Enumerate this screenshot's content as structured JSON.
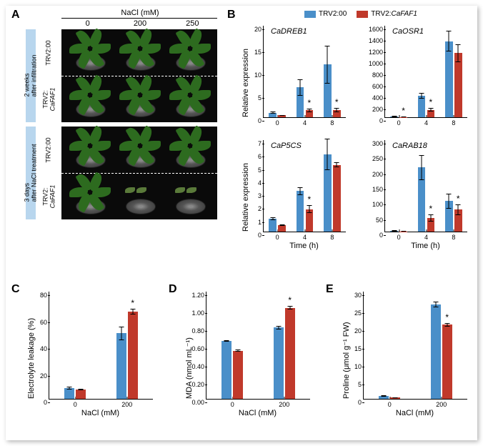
{
  "colors": {
    "trv00": "#4a8fc9",
    "trvfaf": "#c0392b",
    "axis": "#000000",
    "bg": "#ffffff",
    "side_label_bg": "#b8d6ee",
    "photo_bg": "#0a0a0a",
    "leaf": "#2d6b1f"
  },
  "legend": {
    "items": [
      {
        "label": "TRV2:00",
        "colorKey": "trv00"
      },
      {
        "label": "TRV2:CaFAF1",
        "colorKey": "trvfaf",
        "italic_part": "CaFAF1"
      }
    ]
  },
  "panelA": {
    "label": "A",
    "nacl_header": "NaCl (mM)",
    "nacl_levels": [
      "0",
      "200",
      "250"
    ],
    "blocks": [
      {
        "side": "2 weeks\nafter infiltration",
        "rows": [
          "TRV2:00",
          "TRV2:\nCaFAF1"
        ],
        "leafy_bottom": true
      },
      {
        "side": "3 days\nafter NaCl treatment",
        "rows": [
          "TRV2:00",
          "TRV2:\nCaFAF1"
        ],
        "leafy_bottom": false
      }
    ]
  },
  "panelB": {
    "label": "B",
    "ylabel": "Relative expression",
    "xlabel": "Time (h)",
    "categories": [
      "0",
      "4",
      "8"
    ],
    "charts": [
      {
        "title": "CaDREB1",
        "ymax": 20,
        "ystep": 5,
        "series": {
          "trv00": {
            "values": [
              1.0,
              6.5,
              11.5
            ],
            "err": [
              0.2,
              1.8,
              4.2
            ]
          },
          "trvfaf": {
            "values": [
              0.4,
              1.5,
              1.6
            ],
            "err": [
              0.1,
              0.4,
              0.5
            ]
          }
        },
        "stars": [
          null,
          "trvfaf",
          "trvfaf"
        ]
      },
      {
        "title": "CaOSR1",
        "ymax": 1600,
        "ystep": 200,
        "series": {
          "trv00": {
            "values": [
              15,
              370,
              1330
            ],
            "err": [
              3,
              50,
              180
            ]
          },
          "trvfaf": {
            "values": [
              5,
              130,
              1120
            ],
            "err": [
              2,
              30,
              160
            ]
          }
        },
        "stars": [
          "trvfaf",
          "trvfaf",
          null
        ]
      },
      {
        "title": "CaP5CS",
        "ymax": 7,
        "ystep": 1,
        "series": {
          "trv00": {
            "values": [
              1.0,
              3.1,
              5.9
            ],
            "err": [
              0.1,
              0.3,
              1.2
            ]
          },
          "trvfaf": {
            "values": [
              0.5,
              1.7,
              5.1
            ],
            "err": [
              0.05,
              0.3,
              0.2
            ]
          }
        },
        "stars": [
          null,
          "trvfaf",
          null
        ]
      },
      {
        "title": "CaRAB18",
        "ymax": 300,
        "ystep": 50,
        "series": {
          "trv00": {
            "values": [
              2,
              210,
              100
            ],
            "err": [
              0.5,
              42,
              25
            ]
          },
          "trvfaf": {
            "values": [
              1,
              45,
              72
            ],
            "err": [
              0.3,
              12,
              18
            ]
          }
        },
        "stars": [
          null,
          "trvfaf",
          "trvfaf"
        ]
      }
    ]
  },
  "panelsCDE": {
    "xlabel": "NaCl (mM)",
    "categories": [
      "0",
      "200"
    ],
    "charts": [
      {
        "label": "C",
        "ylabel": "Electrolyte leakage (%)",
        "ymax": 80,
        "ystep": 20,
        "series": {
          "trv00": {
            "values": [
              8,
              49
            ],
            "err": [
              1,
              5
            ]
          },
          "trvfaf": {
            "values": [
              7,
              65
            ],
            "err": [
              0.5,
              2
            ]
          }
        },
        "stars": [
          null,
          "trvfaf"
        ]
      },
      {
        "label": "D",
        "ylabel": "MDA (nmol mL⁻¹)",
        "ymax": 1.2,
        "ystep_vals": [
          0.0,
          0.2,
          0.4,
          0.6,
          0.8,
          1.0,
          1.2
        ],
        "series": {
          "trv00": {
            "values": [
              0.65,
              0.8
            ],
            "err": [
              0.01,
              0.02
            ]
          },
          "trvfaf": {
            "values": [
              0.54,
              1.02
            ],
            "err": [
              0.01,
              0.02
            ]
          }
        },
        "stars": [
          null,
          "trvfaf"
        ]
      },
      {
        "label": "E",
        "ylabel": "Proline (μmol g⁻¹ FW)",
        "ymax": 30,
        "ystep": 5,
        "series": {
          "trv00": {
            "values": [
              0.8,
              26.5
            ],
            "err": [
              0.2,
              0.8
            ]
          },
          "trvfaf": {
            "values": [
              0.4,
              20.8
            ],
            "err": [
              0.1,
              0.5
            ]
          }
        },
        "stars": [
          null,
          "trvfaf"
        ]
      }
    ]
  }
}
